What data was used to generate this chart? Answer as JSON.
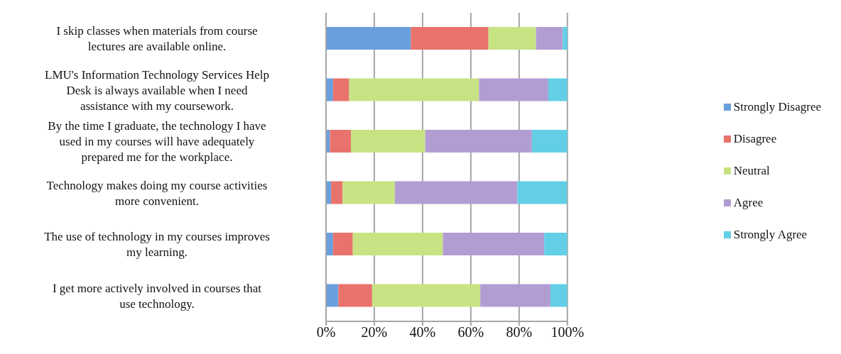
{
  "chart_data": {
    "type": "bar",
    "orientation": "horizontal",
    "stacked": true,
    "categories": [
      "I skip classes when materials from course lectures are available online.",
      "LMU's Information Technology Services Help Desk is always available when I need assistance with my coursework.",
      "By the time I graduate, the technology I have used in my courses will have adequately prepared me for the workplace.",
      "Technology makes doing my course activities more convenient.",
      "The use of technology in my courses improves my learning.",
      "I get more actively involved in courses that use technology."
    ],
    "series": [
      {
        "name": "Strongly Disagree",
        "color": "#6a9fde",
        "values": [
          35.1,
          2.9,
          1.6,
          2.1,
          2.9,
          5.1
        ]
      },
      {
        "name": "Disagree",
        "color": "#e8736c",
        "values": [
          32.2,
          6.7,
          8.7,
          4.8,
          8.2,
          14.0
        ]
      },
      {
        "name": "Neutral",
        "color": "#c8e383",
        "values": [
          19.7,
          53.8,
          30.8,
          21.6,
          37.3,
          44.8
        ]
      },
      {
        "name": "Agree",
        "color": "#b29dd2",
        "values": [
          11.1,
          28.7,
          44.2,
          50.8,
          42.0,
          29.1
        ]
      },
      {
        "name": "Strongly Agree",
        "color": "#62cfe6",
        "values": [
          1.9,
          7.9,
          14.7,
          20.6,
          9.6,
          7.0
        ]
      }
    ],
    "xlim": [
      0,
      100
    ],
    "xticks": [
      {
        "value": 0,
        "label": "0%"
      },
      {
        "value": 20,
        "label": "20%"
      },
      {
        "value": 40,
        "label": "40%"
      },
      {
        "value": 60,
        "label": "60%"
      },
      {
        "value": 80,
        "label": "80%"
      },
      {
        "value": 100,
        "label": "100%"
      }
    ],
    "grid": "x",
    "legend": "right"
  }
}
